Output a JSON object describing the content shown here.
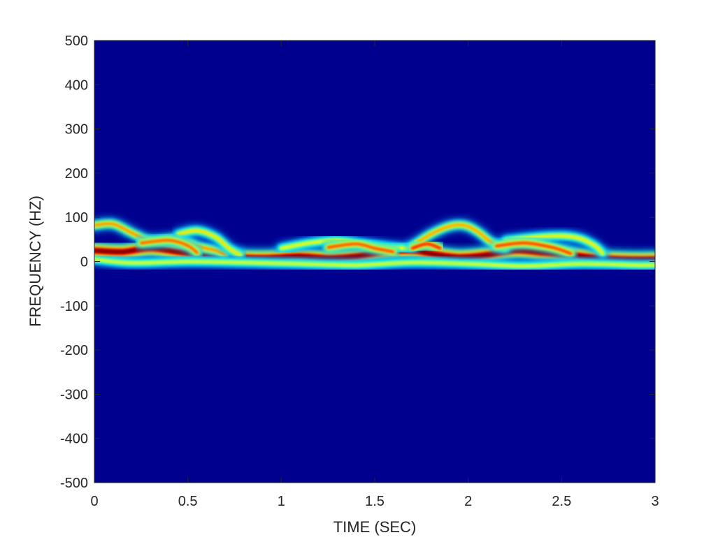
{
  "chart_data": {
    "type": "heatmap",
    "title": "",
    "xlabel": "TIME (SEC)",
    "ylabel": "FREQUENCY (HZ)",
    "xlim": [
      0,
      3
    ],
    "ylim": [
      -500,
      500
    ],
    "xticks": [
      0,
      0.5,
      1,
      1.5,
      2,
      2.5,
      3
    ],
    "xtick_labels": [
      "0",
      "0.5",
      "1",
      "1.5",
      "2",
      "2.5",
      "3"
    ],
    "yticks": [
      500,
      400,
      300,
      200,
      100,
      0,
      -100,
      -200,
      -300,
      -400,
      -500
    ],
    "ytick_labels": [
      "500",
      "400",
      "300",
      "200",
      "100",
      "0",
      "-100",
      "-200",
      "-300",
      "-400",
      "-500"
    ],
    "colormap": "jet",
    "background_color": "#00008f",
    "grid": false,
    "legend": "none",
    "ridges": [
      {
        "role": "fundamental",
        "intensity": 1.0,
        "points": [
          [
            0,
            25
          ],
          [
            0.15,
            22
          ],
          [
            0.3,
            30
          ],
          [
            0.45,
            22
          ],
          [
            0.6,
            15
          ],
          [
            0.75,
            10
          ],
          [
            0.9,
            8
          ],
          [
            1.0,
            10
          ],
          [
            1.1,
            12
          ],
          [
            1.25,
            8
          ],
          [
            1.4,
            12
          ],
          [
            1.55,
            22
          ],
          [
            1.7,
            25
          ],
          [
            1.8,
            18
          ],
          [
            1.95,
            10
          ],
          [
            2.1,
            15
          ],
          [
            2.25,
            25
          ],
          [
            2.4,
            20
          ],
          [
            2.55,
            15
          ],
          [
            2.7,
            8
          ],
          [
            2.85,
            5
          ],
          [
            3.0,
            5
          ]
        ]
      },
      {
        "role": "upper-trace",
        "intensity": 0.72,
        "points": [
          [
            0,
            82
          ],
          [
            0.1,
            85
          ],
          [
            0.2,
            65
          ],
          [
            0.3,
            48
          ],
          [
            0.45,
            52
          ],
          [
            0.55,
            35
          ],
          [
            0.65,
            25
          ],
          [
            0.7,
            15
          ]
        ]
      },
      {
        "role": "upper-trace",
        "intensity": 0.62,
        "points": [
          [
            0.45,
            62
          ],
          [
            0.55,
            70
          ],
          [
            0.65,
            55
          ],
          [
            0.72,
            30
          ],
          [
            0.78,
            15
          ]
        ]
      },
      {
        "role": "upper-trace",
        "intensity": 0.58,
        "points": [
          [
            1.0,
            30
          ],
          [
            1.15,
            42
          ],
          [
            1.3,
            48
          ],
          [
            1.45,
            40
          ],
          [
            1.6,
            32
          ],
          [
            1.7,
            30
          ]
        ]
      },
      {
        "role": "upper-trace",
        "intensity": 0.7,
        "points": [
          [
            1.7,
            35
          ],
          [
            1.8,
            62
          ],
          [
            1.9,
            80
          ],
          [
            1.98,
            82
          ],
          [
            2.05,
            68
          ],
          [
            2.12,
            45
          ],
          [
            2.2,
            30
          ]
        ]
      },
      {
        "role": "upper-trace",
        "intensity": 0.6,
        "points": [
          [
            2.2,
            48
          ],
          [
            2.35,
            55
          ],
          [
            2.5,
            58
          ],
          [
            2.6,
            52
          ],
          [
            2.68,
            35
          ],
          [
            2.72,
            18
          ]
        ]
      },
      {
        "role": "mid-trace",
        "intensity": 0.78,
        "points": [
          [
            0.25,
            42
          ],
          [
            0.4,
            48
          ],
          [
            0.5,
            36
          ],
          [
            0.55,
            20
          ]
        ]
      },
      {
        "role": "mid-trace",
        "intensity": 0.8,
        "points": [
          [
            1.25,
            32
          ],
          [
            1.4,
            40
          ],
          [
            1.5,
            30
          ],
          [
            1.6,
            22
          ]
        ]
      },
      {
        "role": "mid-trace",
        "intensity": 0.85,
        "points": [
          [
            1.7,
            30
          ],
          [
            1.78,
            40
          ],
          [
            1.85,
            30
          ]
        ]
      },
      {
        "role": "mid-trace",
        "intensity": 0.82,
        "points": [
          [
            2.15,
            35
          ],
          [
            2.3,
            42
          ],
          [
            2.45,
            32
          ],
          [
            2.55,
            18
          ]
        ]
      },
      {
        "role": "low-trace",
        "intensity": 0.55,
        "points": [
          [
            0,
            5
          ],
          [
            0.2,
            -3
          ],
          [
            0.5,
            0
          ],
          [
            0.8,
            -2
          ],
          [
            1.1,
            -5
          ],
          [
            1.4,
            -8
          ],
          [
            1.7,
            -2
          ],
          [
            2.0,
            -5
          ],
          [
            2.3,
            -10
          ],
          [
            2.6,
            -5
          ],
          [
            2.9,
            -8
          ],
          [
            3.0,
            -8
          ]
        ]
      }
    ]
  }
}
